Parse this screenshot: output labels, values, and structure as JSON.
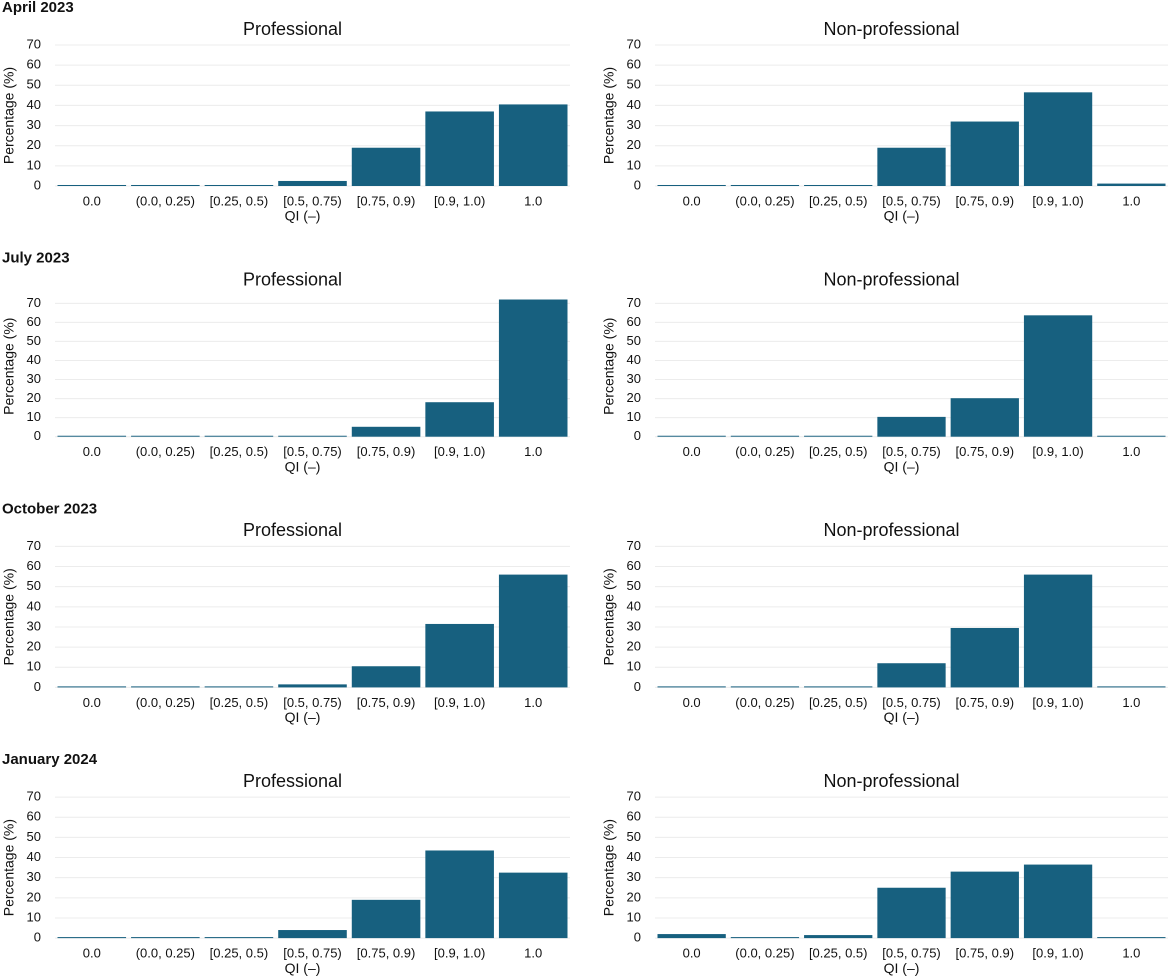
{
  "row_titles": [
    "April 2023",
    "July 2023",
    "October 2023",
    "January 2024"
  ],
  "chart_data": [
    {
      "type": "bar",
      "title": "Professional",
      "xlabel": "QI (–)",
      "ylabel": "Percentage (%)",
      "categories": [
        "0.0",
        "(0.0, 0.25)",
        "[0.25, 0.5)",
        "[0.5, 0.75)",
        "[0.75, 0.9)",
        "[0.9, 1.0)",
        "1.0"
      ],
      "values": [
        0.5,
        0.5,
        0.5,
        2.5,
        19,
        37,
        40.5
      ],
      "color": "#17607f",
      "ylim": [
        0,
        70
      ],
      "yticks": [
        0,
        10,
        20,
        30,
        40,
        50,
        60,
        70
      ],
      "grid": true
    },
    {
      "type": "bar",
      "title": "Non-professional",
      "xlabel": "QI (–)",
      "ylabel": "Percentage (%)",
      "categories": [
        "0.0",
        "(0.0, 0.25)",
        "[0.25, 0.5)",
        "[0.5, 0.75)",
        "[0.75, 0.9)",
        "[0.9, 1.0)",
        "1.0"
      ],
      "values": [
        0.5,
        0.5,
        0.5,
        19,
        32,
        46.5,
        1.2
      ],
      "color": "#17607f",
      "ylim": [
        0,
        70
      ],
      "yticks": [
        0,
        10,
        20,
        30,
        40,
        50,
        60,
        70
      ],
      "grid": true
    },
    {
      "type": "bar",
      "title": "Professional",
      "xlabel": "QI (–)",
      "ylabel": "Percentage (%)",
      "categories": [
        "0.0",
        "(0.0, 0.25)",
        "[0.25, 0.5)",
        "[0.5, 0.75)",
        "[0.75, 0.9)",
        "[0.9, 1.0)",
        "1.0"
      ],
      "values": [
        0.5,
        0.5,
        0.5,
        0.5,
        5.2,
        18.1,
        72
      ],
      "color": "#17607f",
      "ylim": [
        0,
        74
      ],
      "yticks": [
        0,
        10,
        20,
        30,
        40,
        50,
        60,
        70
      ],
      "grid": true
    },
    {
      "type": "bar",
      "title": "Non-professional",
      "xlabel": "QI (–)",
      "ylabel": "Percentage (%)",
      "categories": [
        "0.0",
        "(0.0, 0.25)",
        "[0.25, 0.5)",
        "[0.5, 0.75)",
        "[0.75, 0.9)",
        "[0.9, 1.0)",
        "1.0"
      ],
      "values": [
        0.5,
        0.5,
        0.5,
        10.4,
        20.2,
        63.7,
        0.5
      ],
      "color": "#17607f",
      "ylim": [
        0,
        74
      ],
      "yticks": [
        0,
        10,
        20,
        30,
        40,
        50,
        60,
        70
      ],
      "grid": true
    },
    {
      "type": "bar",
      "title": "Professional",
      "xlabel": "QI (–)",
      "ylabel": "Percentage (%)",
      "categories": [
        "0.0",
        "(0.0, 0.25)",
        "[0.25, 0.5)",
        "[0.5, 0.75)",
        "[0.75, 0.9)",
        "[0.9, 1.0)",
        "1.0"
      ],
      "values": [
        0.5,
        0.5,
        0.5,
        1.5,
        10.5,
        31.5,
        56
      ],
      "color": "#17607f",
      "ylim": [
        0,
        70
      ],
      "yticks": [
        0,
        10,
        20,
        30,
        40,
        50,
        60,
        70
      ],
      "grid": true
    },
    {
      "type": "bar",
      "title": "Non-professional",
      "xlabel": "QI (–)",
      "ylabel": "Percentage (%)",
      "categories": [
        "0.0",
        "(0.0, 0.25)",
        "[0.25, 0.5)",
        "[0.5, 0.75)",
        "[0.75, 0.9)",
        "[0.9, 1.0)",
        "1.0"
      ],
      "values": [
        0.5,
        0.5,
        0.5,
        12,
        29.5,
        56,
        0.5
      ],
      "color": "#17607f",
      "ylim": [
        0,
        70
      ],
      "yticks": [
        0,
        10,
        20,
        30,
        40,
        50,
        60,
        70
      ],
      "grid": true
    },
    {
      "type": "bar",
      "title": "Professional",
      "xlabel": "QI (–)",
      "ylabel": "Percentage (%)",
      "categories": [
        "0.0",
        "(0.0, 0.25)",
        "[0.25, 0.5)",
        "[0.5, 0.75)",
        "[0.75, 0.9)",
        "[0.9, 1.0)",
        "1.0"
      ],
      "values": [
        0.5,
        0.5,
        0.5,
        4,
        19,
        43.5,
        32.5
      ],
      "color": "#17607f",
      "ylim": [
        0,
        70
      ],
      "yticks": [
        0,
        10,
        20,
        30,
        40,
        50,
        60,
        70
      ],
      "grid": true
    },
    {
      "type": "bar",
      "title": "Non-professional",
      "xlabel": "QI (–)",
      "ylabel": "Percentage (%)",
      "categories": [
        "0.0",
        "(0.0, 0.25)",
        "[0.25, 0.5)",
        "[0.5, 0.75)",
        "[0.75, 0.9)",
        "[0.9, 1.0)",
        "1.0"
      ],
      "values": [
        2,
        0.5,
        1.5,
        25,
        33,
        36.5,
        0.5
      ],
      "color": "#17607f",
      "ylim": [
        0,
        70
      ],
      "yticks": [
        0,
        10,
        20,
        30,
        40,
        50,
        60,
        70
      ],
      "grid": true
    }
  ]
}
